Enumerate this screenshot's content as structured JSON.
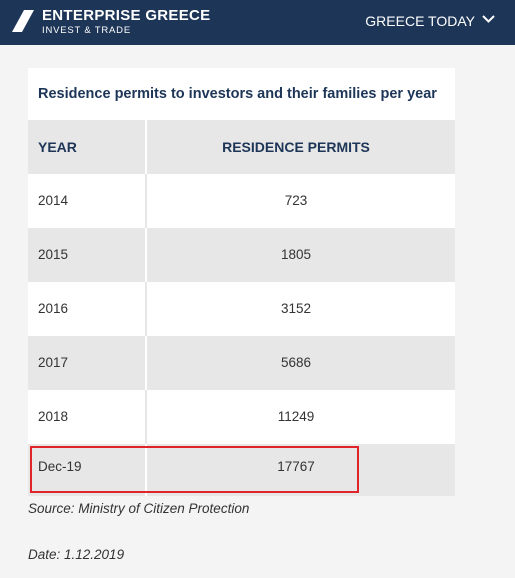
{
  "header": {
    "brand": "ENTERPRISE GREECE",
    "tagline": "INVEST & TRADE",
    "nav": "GREECE TODAY"
  },
  "table": {
    "title": "Residence permits to investors and their families per year",
    "columns": [
      "YEAR",
      "RESIDENCE PERMITS"
    ],
    "rows": [
      [
        "2014",
        723
      ],
      [
        "2015",
        1805
      ],
      [
        "2016",
        3152
      ],
      [
        "2017",
        5686
      ],
      [
        "2018",
        11249
      ],
      [
        "Dec-19",
        17767
      ]
    ]
  },
  "source": "Source: Ministry of Citizen Protection",
  "date": "Date: 1.12.2019"
}
